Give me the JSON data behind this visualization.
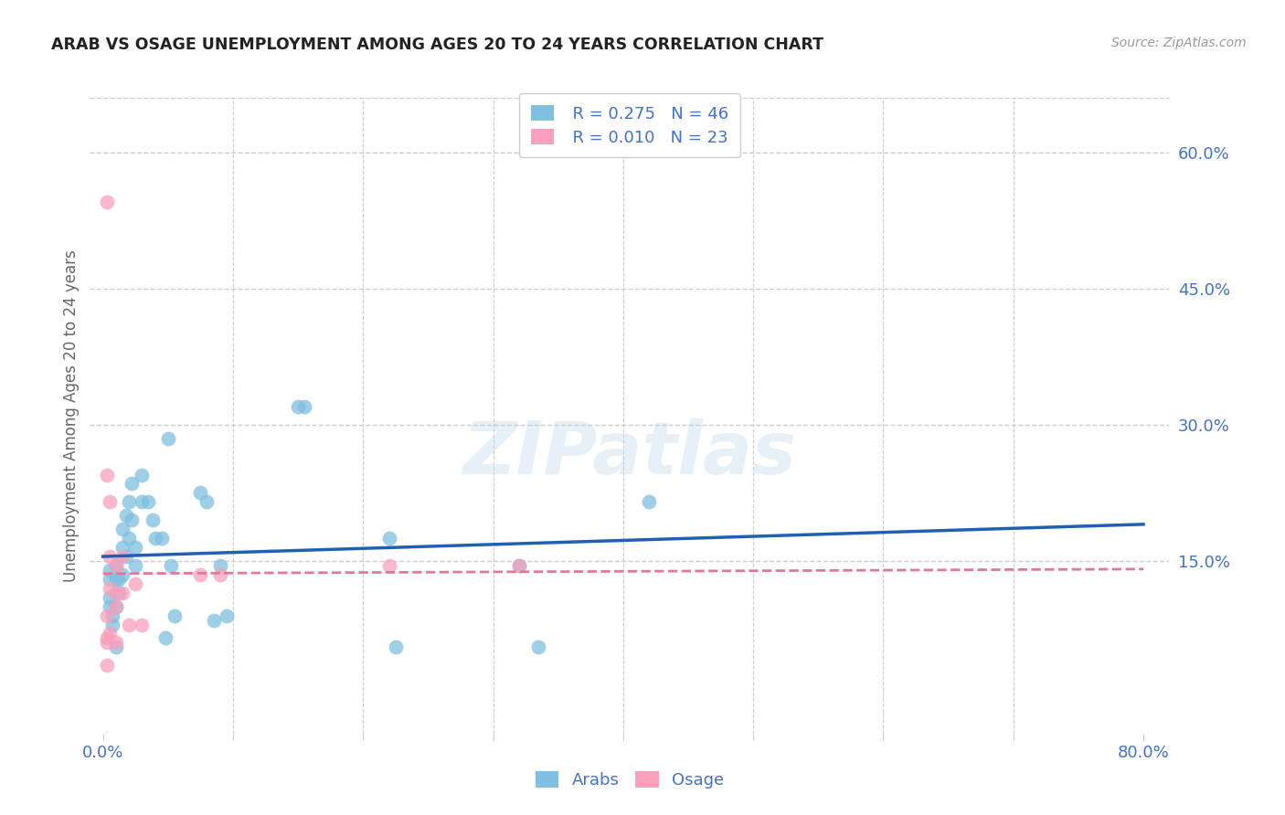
{
  "title": "ARAB VS OSAGE UNEMPLOYMENT AMONG AGES 20 TO 24 YEARS CORRELATION CHART",
  "source": "Source: ZipAtlas.com",
  "ylabel": "Unemployment Among Ages 20 to 24 years",
  "xlim": [
    -0.01,
    0.82
  ],
  "ylim": [
    -0.04,
    0.66
  ],
  "ytick_right_vals": [
    0.6,
    0.45,
    0.3,
    0.15
  ],
  "ytick_right_labels": [
    "60.0%",
    "45.0%",
    "30.0%",
    "15.0%"
  ],
  "arab_color": "#7fbfdf",
  "osage_color": "#f8a0bc",
  "arab_line_color": "#2060b0",
  "osage_line_color": "#e07898",
  "legend_R_arab": "R = 0.275",
  "legend_N_arab": "N = 46",
  "legend_R_osage": "R = 0.010",
  "legend_N_osage": "N = 23",
  "legend_label_arab": "Arabs",
  "legend_label_osage": "Osage",
  "arab_x": [
    0.005,
    0.005,
    0.005,
    0.005,
    0.007,
    0.007,
    0.01,
    0.01,
    0.01,
    0.01,
    0.012,
    0.012,
    0.015,
    0.015,
    0.015,
    0.018,
    0.018,
    0.02,
    0.02,
    0.022,
    0.022,
    0.025,
    0.025,
    0.03,
    0.03,
    0.035,
    0.038,
    0.04,
    0.045,
    0.05,
    0.052,
    0.055,
    0.075,
    0.08,
    0.085,
    0.09,
    0.095,
    0.15,
    0.155,
    0.22,
    0.225,
    0.32,
    0.335,
    0.42,
    0.01,
    0.048
  ],
  "arab_y": [
    0.14,
    0.13,
    0.11,
    0.1,
    0.09,
    0.08,
    0.145,
    0.13,
    0.115,
    0.1,
    0.13,
    0.115,
    0.185,
    0.165,
    0.135,
    0.2,
    0.155,
    0.215,
    0.175,
    0.235,
    0.195,
    0.165,
    0.145,
    0.245,
    0.215,
    0.215,
    0.195,
    0.175,
    0.175,
    0.285,
    0.145,
    0.09,
    0.225,
    0.215,
    0.085,
    0.145,
    0.09,
    0.32,
    0.32,
    0.175,
    0.055,
    0.145,
    0.055,
    0.215,
    0.055,
    0.065
  ],
  "osage_x": [
    0.003,
    0.003,
    0.003,
    0.005,
    0.005,
    0.005,
    0.005,
    0.01,
    0.01,
    0.01,
    0.01,
    0.015,
    0.015,
    0.02,
    0.025,
    0.03,
    0.075,
    0.09,
    0.22,
    0.32,
    0.003,
    0.003,
    0.003
  ],
  "osage_y": [
    0.545,
    0.245,
    0.06,
    0.215,
    0.155,
    0.12,
    0.07,
    0.145,
    0.115,
    0.1,
    0.06,
    0.155,
    0.115,
    0.08,
    0.125,
    0.08,
    0.135,
    0.135,
    0.145,
    0.145,
    0.09,
    0.065,
    0.035
  ],
  "watermark": "ZIPatlas",
  "background_color": "#ffffff",
  "grid_color": "#cccccc",
  "tick_color": "#4472c4",
  "title_color": "#222222",
  "source_color": "#999999",
  "ylabel_color": "#666666"
}
